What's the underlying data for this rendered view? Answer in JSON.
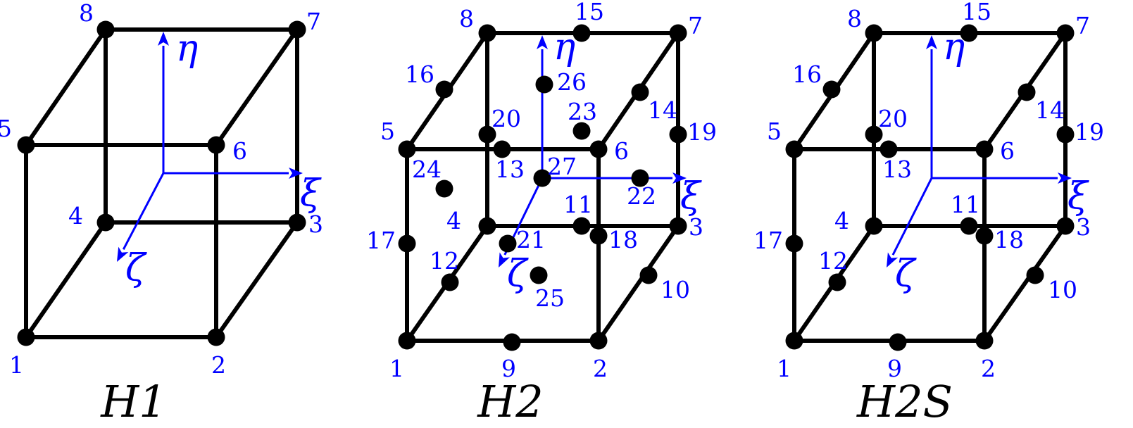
{
  "figure": {
    "elements": [
      {
        "name": "h1",
        "title": "H1",
        "nodes": [
          {
            "id": "1",
            "label": "1"
          },
          {
            "id": "2",
            "label": "2"
          },
          {
            "id": "3",
            "label": "3"
          },
          {
            "id": "4",
            "label": "4"
          },
          {
            "id": "5",
            "label": "5"
          },
          {
            "id": "6",
            "label": "6"
          },
          {
            "id": "7",
            "label": "7"
          },
          {
            "id": "8",
            "label": "8"
          }
        ],
        "edges": [
          [
            "1",
            "2"
          ],
          [
            "2",
            "3"
          ],
          [
            "3",
            "4"
          ],
          [
            "4",
            "1"
          ],
          [
            "5",
            "6"
          ],
          [
            "6",
            "7"
          ],
          [
            "7",
            "8"
          ],
          [
            "8",
            "5"
          ],
          [
            "1",
            "5"
          ],
          [
            "2",
            "6"
          ],
          [
            "3",
            "7"
          ],
          [
            "4",
            "8"
          ]
        ],
        "axes": {
          "xi": "ξ",
          "eta": "η",
          "zeta": "ζ"
        }
      },
      {
        "name": "h2",
        "title": "H2",
        "nodes": [
          {
            "id": "1",
            "label": "1"
          },
          {
            "id": "2",
            "label": "2"
          },
          {
            "id": "3",
            "label": "3"
          },
          {
            "id": "4",
            "label": "4"
          },
          {
            "id": "5",
            "label": "5"
          },
          {
            "id": "6",
            "label": "6"
          },
          {
            "id": "7",
            "label": "7"
          },
          {
            "id": "8",
            "label": "8"
          },
          {
            "id": "9",
            "label": "9"
          },
          {
            "id": "10",
            "label": "10"
          },
          {
            "id": "11",
            "label": "11"
          },
          {
            "id": "12",
            "label": "12"
          },
          {
            "id": "13",
            "label": "13"
          },
          {
            "id": "14",
            "label": "14"
          },
          {
            "id": "15",
            "label": "15"
          },
          {
            "id": "16",
            "label": "16"
          },
          {
            "id": "17",
            "label": "17"
          },
          {
            "id": "18",
            "label": "18"
          },
          {
            "id": "19",
            "label": "19"
          },
          {
            "id": "20",
            "label": "20"
          },
          {
            "id": "21",
            "label": "21"
          },
          {
            "id": "22",
            "label": "22"
          },
          {
            "id": "23",
            "label": "23"
          },
          {
            "id": "24",
            "label": "24"
          },
          {
            "id": "25",
            "label": "25"
          },
          {
            "id": "26",
            "label": "26"
          },
          {
            "id": "27",
            "label": "27"
          }
        ],
        "edges": [
          [
            "1",
            "2"
          ],
          [
            "2",
            "3"
          ],
          [
            "3",
            "4"
          ],
          [
            "4",
            "1"
          ],
          [
            "5",
            "6"
          ],
          [
            "6",
            "7"
          ],
          [
            "7",
            "8"
          ],
          [
            "8",
            "5"
          ],
          [
            "1",
            "5"
          ],
          [
            "2",
            "6"
          ],
          [
            "3",
            "7"
          ],
          [
            "4",
            "8"
          ]
        ],
        "axes": {
          "xi": "ξ",
          "eta": "η",
          "zeta": "ζ"
        }
      },
      {
        "name": "h2s",
        "title": "H2S",
        "nodes": [
          {
            "id": "1",
            "label": "1"
          },
          {
            "id": "2",
            "label": "2"
          },
          {
            "id": "3",
            "label": "3"
          },
          {
            "id": "4",
            "label": "4"
          },
          {
            "id": "5",
            "label": "5"
          },
          {
            "id": "6",
            "label": "6"
          },
          {
            "id": "7",
            "label": "7"
          },
          {
            "id": "8",
            "label": "8"
          },
          {
            "id": "9",
            "label": "9"
          },
          {
            "id": "10",
            "label": "10"
          },
          {
            "id": "11",
            "label": "11"
          },
          {
            "id": "12",
            "label": "12"
          },
          {
            "id": "13",
            "label": "13"
          },
          {
            "id": "14",
            "label": "14"
          },
          {
            "id": "15",
            "label": "15"
          },
          {
            "id": "16",
            "label": "16"
          },
          {
            "id": "17",
            "label": "17"
          },
          {
            "id": "18",
            "label": "18"
          },
          {
            "id": "19",
            "label": "19"
          },
          {
            "id": "20",
            "label": "20"
          }
        ],
        "edges": [
          [
            "1",
            "2"
          ],
          [
            "2",
            "3"
          ],
          [
            "3",
            "4"
          ],
          [
            "4",
            "1"
          ],
          [
            "5",
            "6"
          ],
          [
            "6",
            "7"
          ],
          [
            "7",
            "8"
          ],
          [
            "8",
            "5"
          ],
          [
            "1",
            "5"
          ],
          [
            "2",
            "6"
          ],
          [
            "3",
            "7"
          ],
          [
            "4",
            "8"
          ]
        ],
        "axes": {
          "xi": "ξ",
          "eta": "η",
          "zeta": "ζ"
        }
      }
    ],
    "colors": {
      "edges": "#000000",
      "nodes": "#000000",
      "labels": "#0000ff",
      "axes": "#0000ff",
      "titles": "#000000"
    }
  }
}
